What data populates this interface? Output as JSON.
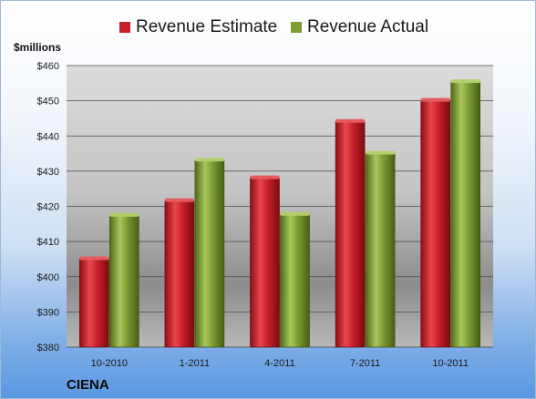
{
  "chart_data": {
    "type": "bar",
    "title": "",
    "ylabel": "$millions",
    "xlabel": "",
    "categories": [
      "10-2010",
      "1-2011",
      "4-2011",
      "7-2011",
      "10-2011"
    ],
    "series": [
      {
        "name": "Revenue Estimate",
        "color": "#c8202a",
        "values": [
          405,
          421.5,
          428,
          444,
          450
        ]
      },
      {
        "name": "Revenue Actual",
        "color": "#7d9b31",
        "values": [
          417.3,
          433,
          417.6,
          435,
          455.3
        ]
      }
    ],
    "ylim": [
      380,
      460
    ],
    "yticks": [
      380,
      390,
      400,
      410,
      420,
      430,
      440,
      450,
      460
    ],
    "ytick_labels": [
      "$380",
      "$390",
      "$400",
      "$410",
      "$420",
      "$430",
      "$440",
      "$450",
      "$460"
    ],
    "grid": true,
    "legend_position": "top"
  },
  "footer": {
    "company": "CIENA"
  }
}
